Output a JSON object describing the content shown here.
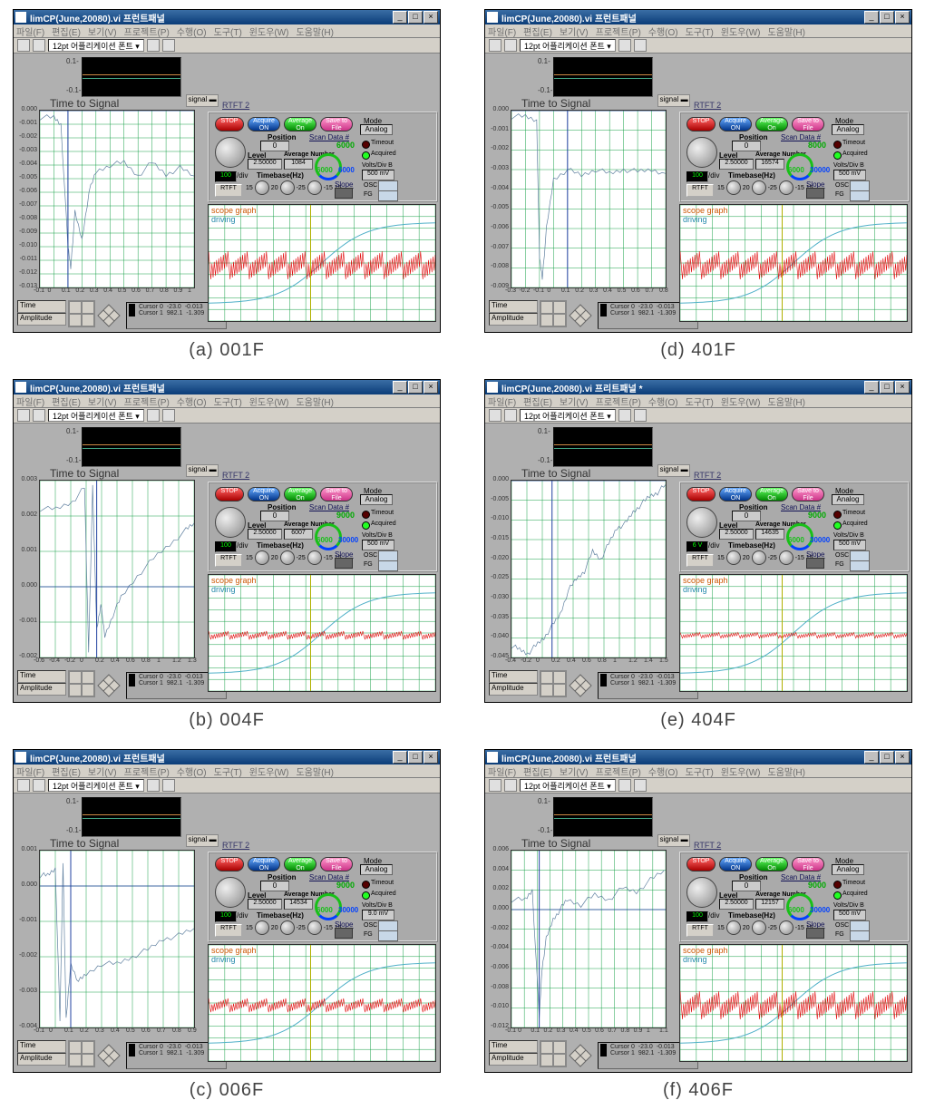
{
  "panels": [
    {
      "caption": "(a) 001F",
      "title": "limCP(June,20080).vi 프런트패널",
      "avg_num": "1084",
      "scan": "6000",
      "arc_max": "6000",
      "tdiv": "100",
      "vd": "500 mV",
      "cursor0": [
        "-23.0",
        "-0.013"
      ],
      "cursor1": [
        "982.1",
        "-1.309"
      ],
      "xticks": [
        -0.1,
        0.0,
        0.1,
        0.2,
        0.3,
        0.4,
        0.5,
        0.6,
        0.7,
        0.8,
        0.9,
        1.0
      ],
      "xrange": [
        -0.1,
        1.0
      ],
      "yticks": [
        0.0,
        -0.001,
        -0.002,
        -0.003,
        -0.004,
        -0.005,
        -0.006,
        -0.007,
        -0.008,
        -0.009,
        -0.01,
        -0.011,
        -0.012,
        -0.013
      ],
      "yrange": [
        -0.013,
        0.0
      ],
      "series": [
        [
          -0.1,
          -0.0005
        ],
        [
          0.0,
          -0.0005
        ],
        [
          0.05,
          -0.001
        ],
        [
          0.1,
          -0.01
        ],
        [
          0.12,
          -0.0115
        ],
        [
          0.15,
          -0.0075
        ],
        [
          0.2,
          -0.0095
        ],
        [
          0.25,
          -0.006
        ],
        [
          0.3,
          -0.0045
        ],
        [
          0.4,
          -0.004
        ],
        [
          0.5,
          -0.0038
        ],
        [
          0.6,
          -0.0048
        ],
        [
          0.7,
          -0.0038
        ],
        [
          0.8,
          -0.0047
        ],
        [
          0.9,
          -0.0042
        ],
        [
          1.0,
          -0.0048
        ]
      ],
      "noise_amp": 1,
      "driving_shape": "sigmoid"
    },
    {
      "caption": "(d) 401F",
      "title": "limCP(June,20080).vi 프런트패널",
      "avg_num": "16574",
      "scan": "8000",
      "arc_max": "30000",
      "tdiv": "100",
      "vd": "500 mV",
      "cursor0": [
        "-23.0",
        "-0.013"
      ],
      "cursor1": [
        "982.1",
        "-1.309"
      ],
      "xticks": [
        -0.3,
        -0.2,
        -0.1,
        0.0,
        0.1,
        0.2,
        0.3,
        0.4,
        0.5,
        0.6,
        0.7,
        0.8
      ],
      "xrange": [
        -0.3,
        0.8
      ],
      "yticks": [
        0.0,
        -0.001,
        -0.002,
        -0.003,
        -0.004,
        -0.005,
        -0.006,
        -0.007,
        -0.008,
        -0.009
      ],
      "yrange": [
        -0.009,
        0.0
      ],
      "series": [
        [
          -0.3,
          -0.0003
        ],
        [
          -0.2,
          -0.0003
        ],
        [
          -0.12,
          -0.0005
        ],
        [
          -0.1,
          -0.0075
        ],
        [
          -0.08,
          -0.0085
        ],
        [
          -0.05,
          -0.006
        ],
        [
          0.0,
          -0.0035
        ],
        [
          0.1,
          -0.003
        ],
        [
          0.2,
          -0.0033
        ],
        [
          0.3,
          -0.003
        ],
        [
          0.4,
          -0.0032
        ],
        [
          0.5,
          -0.003
        ],
        [
          0.6,
          -0.0031
        ],
        [
          0.7,
          -0.003
        ],
        [
          0.8,
          -0.0032
        ]
      ],
      "noise_amp": 1,
      "driving_shape": "sigmoid"
    },
    {
      "caption": "(b) 004F",
      "title": "limCP(June,20080).vi 프런트패널",
      "avg_num": "6007",
      "scan": "9000",
      "arc_max": "30000",
      "tdiv": "100",
      "vd": "500 mV",
      "cursor0": [
        "-23.0",
        "-0.013"
      ],
      "cursor1": [
        "982.1",
        "-1.309"
      ],
      "xticks": [
        -0.6,
        -0.4,
        -0.2,
        0.0,
        0.2,
        0.4,
        0.6,
        0.8,
        1.0,
        1.2,
        1.3
      ],
      "xrange": [
        -0.6,
        1.3
      ],
      "yticks": [
        0.003,
        0.002,
        0.001,
        0.0,
        -0.001,
        -0.002
      ],
      "yrange": [
        -0.002,
        0.003
      ],
      "series": [
        [
          -0.6,
          0.0022
        ],
        [
          -0.4,
          0.0022
        ],
        [
          -0.2,
          0.0024
        ],
        [
          -0.05,
          0.0028
        ],
        [
          0.0,
          -0.0018
        ],
        [
          0.05,
          0.0028
        ],
        [
          0.1,
          -0.0012
        ],
        [
          0.15,
          -0.0005
        ],
        [
          0.2,
          -0.0014
        ],
        [
          0.3,
          -0.0008
        ],
        [
          0.4,
          -0.0003
        ],
        [
          0.6,
          0.0003
        ],
        [
          0.8,
          0.0008
        ],
        [
          1.0,
          0.0012
        ],
        [
          1.2,
          0.0016
        ],
        [
          1.3,
          0.0018
        ]
      ],
      "noise_amp": 0.3,
      "driving_shape": "sigmoid"
    },
    {
      "caption": "(e) 404F",
      "title": "limCP(June,20080).vi 프리트패널 *",
      "avg_num": "14635",
      "scan": "9000",
      "arc_max": "30000",
      "tdiv": "6 V",
      "vd": "500 mV",
      "cursor0": [
        "-23.0",
        "-0.013"
      ],
      "cursor1": [
        "982.1",
        "-1.309"
      ],
      "xticks": [
        -0.4,
        -0.2,
        0.0,
        0.2,
        0.4,
        0.6,
        0.8,
        1.0,
        1.2,
        1.4,
        1.5
      ],
      "xrange": [
        -0.4,
        1.5
      ],
      "yticks": [
        0.0,
        -0.005,
        -0.01,
        -0.015,
        -0.02,
        -0.025,
        -0.03,
        -0.035,
        -0.04,
        -0.045
      ],
      "yrange": [
        -0.045,
        0.0
      ],
      "series": [
        [
          -0.4,
          -0.042
        ],
        [
          -0.3,
          -0.043
        ],
        [
          -0.2,
          -0.044
        ],
        [
          -0.1,
          -0.042
        ],
        [
          0.0,
          -0.04
        ],
        [
          0.1,
          -0.037
        ],
        [
          0.2,
          -0.034
        ],
        [
          0.3,
          -0.028
        ],
        [
          0.4,
          -0.025
        ],
        [
          0.5,
          -0.023
        ],
        [
          0.6,
          -0.018
        ],
        [
          0.7,
          -0.02
        ],
        [
          0.8,
          -0.016
        ],
        [
          0.9,
          -0.012
        ],
        [
          1.0,
          -0.011
        ],
        [
          1.1,
          -0.008
        ],
        [
          1.2,
          -0.006
        ],
        [
          1.3,
          -0.004
        ],
        [
          1.4,
          -0.003
        ],
        [
          1.5,
          -0.001
        ]
      ],
      "noise_amp": 0.2,
      "driving_shape": "sigmoid"
    },
    {
      "caption": "(c) 006F",
      "title": "limCP(June,20080).vi 프런트패널",
      "avg_num": "14534",
      "scan": "9000",
      "arc_max": "30000",
      "tdiv": "100",
      "vd": "9.0 mV",
      "cursor0": [
        "-23.0",
        "-0.013"
      ],
      "cursor1": [
        "982.1",
        "-1.309"
      ],
      "xticks": [
        -0.1,
        0.0,
        0.1,
        0.2,
        0.3,
        0.4,
        0.5,
        0.6,
        0.7,
        0.8,
        0.9
      ],
      "xrange": [
        -0.1,
        0.9
      ],
      "yticks": [
        0.001,
        0.0,
        -0.001,
        -0.002,
        -0.003,
        -0.004
      ],
      "yrange": [
        -0.004,
        0.001
      ],
      "series": [
        [
          -0.1,
          0.0003
        ],
        [
          -0.05,
          0.0003
        ],
        [
          0.0,
          0.0005
        ],
        [
          0.03,
          -0.0038
        ],
        [
          0.05,
          0.0007
        ],
        [
          0.07,
          -0.0038
        ],
        [
          0.1,
          -0.0022
        ],
        [
          0.15,
          -0.0027
        ],
        [
          0.2,
          -0.0025
        ],
        [
          0.3,
          -0.0022
        ],
        [
          0.4,
          -0.0022
        ],
        [
          0.5,
          -0.002
        ],
        [
          0.6,
          -0.0018
        ],
        [
          0.7,
          -0.0015
        ],
        [
          0.8,
          -0.0014
        ],
        [
          0.9,
          -0.0012
        ]
      ],
      "noise_amp": 0.5,
      "driving_shape": "sigmoid"
    },
    {
      "caption": "(f) 406F",
      "title": "limCP(June,20080).vi 프런트패널",
      "avg_num": "12157",
      "scan": "9000",
      "arc_max": "30000",
      "tdiv": "100",
      "vd": "500 mV",
      "cursor0": [
        "-23.0",
        "-0.013"
      ],
      "cursor1": [
        "982.1",
        "-1.309"
      ],
      "xticks": [
        -0.1,
        0.0,
        0.1,
        0.2,
        0.3,
        0.4,
        0.5,
        0.6,
        0.7,
        0.8,
        0.9,
        1.0,
        1.1
      ],
      "xrange": [
        -0.1,
        1.01
      ],
      "yticks": [
        0.006,
        0.004,
        0.002,
        0.0,
        -0.002,
        -0.004,
        -0.006,
        -0.008,
        -0.01,
        -0.012
      ],
      "yrange": [
        -0.012,
        0.006
      ],
      "series": [
        [
          -0.1,
          0.001
        ],
        [
          0.0,
          0.001
        ],
        [
          0.05,
          0.002
        ],
        [
          0.1,
          -0.011
        ],
        [
          0.12,
          -0.006
        ],
        [
          0.15,
          -0.003
        ],
        [
          0.2,
          -0.001
        ],
        [
          0.25,
          0.0
        ],
        [
          0.3,
          0.001
        ],
        [
          0.4,
          0.0005
        ],
        [
          0.5,
          0.0015
        ],
        [
          0.6,
          0.001
        ],
        [
          0.7,
          0.0022
        ],
        [
          0.8,
          0.0018
        ],
        [
          0.9,
          0.003
        ],
        [
          1.0,
          0.004
        ]
      ],
      "noise_amp": 1,
      "driving_shape": "sigmoid"
    }
  ],
  "labels": {
    "menu": [
      "파일(F)",
      "편집(E)",
      "보기(V)",
      "프로젝트(P)",
      "수행(O)",
      "도구(T)",
      "윈도우(W)",
      "도움말(H)"
    ],
    "toolbar_font": "12pt 어플리케이션 폰트",
    "time_to_signal": "Time to Signal",
    "signal": "signal",
    "rtft2": "RTFT 2",
    "stop": "STOP",
    "acquire": "Acquire ON",
    "average": "Average On",
    "save": "Save to File",
    "mode": "Mode",
    "analog": "Analog",
    "position": "Position",
    "pos_val": "0",
    "scan": "Scan Data #",
    "timeout": "Timeout",
    "acquired": "Acquired",
    "level": "Level",
    "level_val": "2.50000",
    "avg_num": "Average Number",
    "tdiv": "/div",
    "timebase": "Timebase(Hz)",
    "volts": "Volts/Div B",
    "rtft": "RTFT",
    "slope": "Slope",
    "osc": "OSC",
    "fg": "FG",
    "scope": "scope graph",
    "driving": "driving",
    "time": "Time",
    "amplitude": "Amplitude",
    "cursor0": "Cursor 0",
    "cursor1": "Cursor 1",
    "arc_min": "6000",
    "dial_nums": [
      "15",
      "20",
      "-25",
      "-15",
      "15"
    ]
  },
  "colors": {
    "grid": "#18a048",
    "signal": "#6080a0",
    "noise": "#e01010",
    "driving": "#50b0c8",
    "cursor": "#b0b000"
  }
}
